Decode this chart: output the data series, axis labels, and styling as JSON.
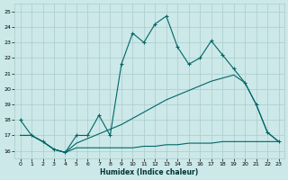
{
  "xlabel": "Humidex (Indice chaleur)",
  "bg_color": "#cce8e8",
  "grid_color": "#aacccc",
  "line_color": "#006666",
  "xlim": [
    -0.5,
    23.5
  ],
  "ylim": [
    15.5,
    25.5
  ],
  "xticks": [
    0,
    1,
    2,
    3,
    4,
    5,
    6,
    7,
    8,
    9,
    10,
    11,
    12,
    13,
    14,
    15,
    16,
    17,
    18,
    19,
    20,
    21,
    22,
    23
  ],
  "yticks": [
    16,
    17,
    18,
    19,
    20,
    21,
    22,
    23,
    24,
    25
  ],
  "series1_x": [
    0,
    1,
    2,
    3,
    4,
    5,
    6,
    7,
    8,
    9,
    10,
    11,
    12,
    13,
    14,
    15,
    16,
    17,
    18,
    19,
    20,
    21,
    22,
    23
  ],
  "series1_y": [
    18.0,
    17.0,
    16.6,
    16.1,
    15.9,
    17.0,
    17.0,
    18.3,
    17.0,
    21.6,
    23.6,
    23.0,
    24.2,
    24.7,
    22.7,
    21.6,
    22.0,
    23.1,
    22.2,
    21.3,
    20.4,
    19.0,
    17.2,
    16.6
  ],
  "series2_x": [
    0,
    1,
    2,
    3,
    4,
    5,
    6,
    7,
    8,
    9,
    10,
    11,
    12,
    13,
    14,
    15,
    16,
    17,
    18,
    19,
    20,
    21,
    22,
    23
  ],
  "series2_y": [
    17.0,
    17.0,
    16.6,
    16.1,
    15.9,
    16.5,
    16.8,
    17.1,
    17.4,
    17.7,
    18.1,
    18.5,
    18.9,
    19.3,
    19.6,
    19.9,
    20.2,
    20.5,
    20.7,
    20.9,
    20.4,
    19.0,
    17.2,
    16.6
  ],
  "series3_x": [
    0,
    1,
    2,
    3,
    4,
    5,
    6,
    7,
    8,
    9,
    10,
    11,
    12,
    13,
    14,
    15,
    16,
    17,
    18,
    19,
    20,
    21,
    22,
    23
  ],
  "series3_y": [
    17.0,
    17.0,
    16.6,
    16.1,
    15.9,
    16.2,
    16.2,
    16.2,
    16.2,
    16.2,
    16.2,
    16.3,
    16.3,
    16.4,
    16.4,
    16.5,
    16.5,
    16.5,
    16.6,
    16.6,
    16.6,
    16.6,
    16.6,
    16.6
  ]
}
